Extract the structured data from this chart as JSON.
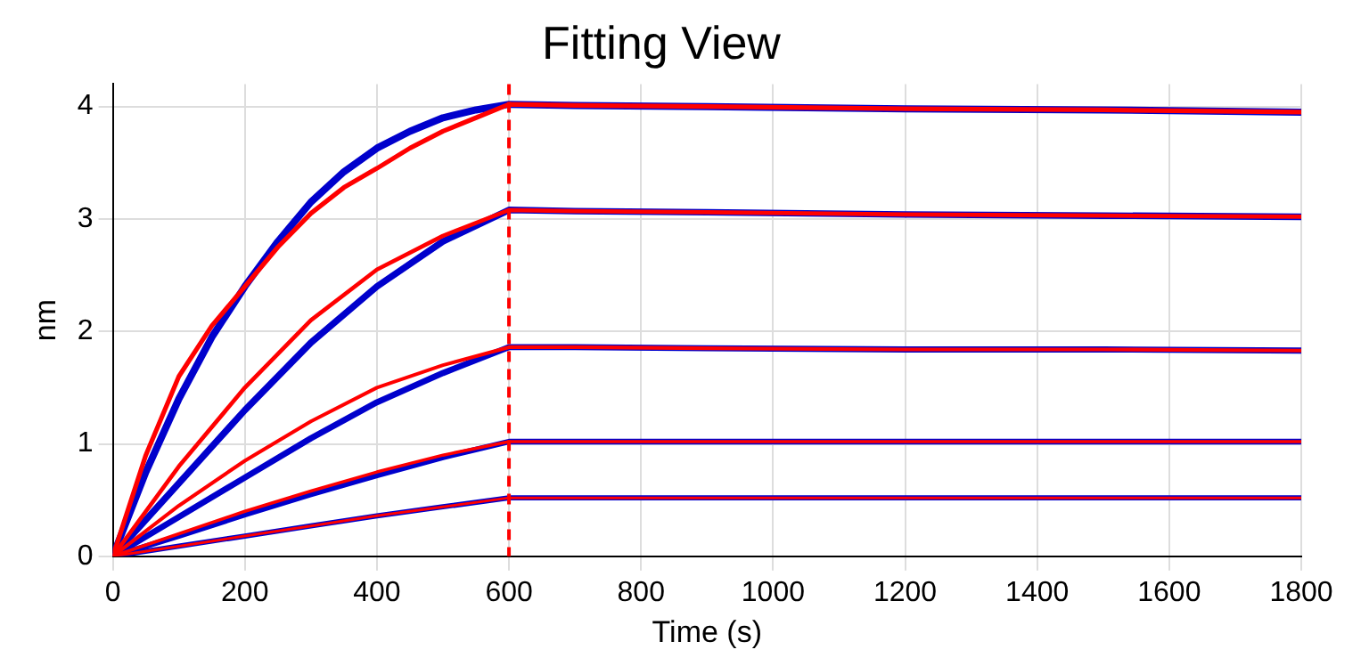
{
  "chart_data": {
    "type": "line",
    "title": "Fitting View",
    "xlabel": "Time (s)",
    "ylabel": "nm",
    "xlim": [
      0,
      1800
    ],
    "xticks": [
      0,
      200,
      400,
      600,
      800,
      1000,
      1200,
      1400,
      1600,
      1800
    ],
    "ylim": [
      0,
      4.2
    ],
    "yticks": [
      0,
      1,
      2,
      3,
      4
    ],
    "grid": true,
    "legend": false,
    "marker": "none",
    "line_style": "solid",
    "series": [
      {
        "color": "#0000cc",
        "x": [
          0,
          50,
          100,
          150,
          200,
          250,
          300,
          350,
          400,
          450,
          500,
          550,
          600,
          700,
          900,
          1200,
          1500,
          1800
        ],
        "values": [
          0,
          0.75,
          1.4,
          1.95,
          2.4,
          2.8,
          3.15,
          3.42,
          3.63,
          3.78,
          3.9,
          3.97,
          4.02,
          4.01,
          4.0,
          3.98,
          3.97,
          3.95
        ]
      },
      {
        "color": "#0000cc",
        "x": [
          0,
          100,
          200,
          300,
          400,
          500,
          600,
          700,
          900,
          1200,
          1500,
          1800
        ],
        "values": [
          0,
          0.65,
          1.3,
          1.9,
          2.4,
          2.8,
          3.08,
          3.07,
          3.06,
          3.04,
          3.03,
          3.02
        ]
      },
      {
        "color": "#0000cc",
        "x": [
          0,
          100,
          200,
          300,
          400,
          500,
          600,
          700,
          900,
          1200,
          1500,
          1800
        ],
        "values": [
          0,
          0.35,
          0.7,
          1.05,
          1.37,
          1.63,
          1.86,
          1.86,
          1.85,
          1.84,
          1.84,
          1.83
        ]
      },
      {
        "color": "#0000cc",
        "x": [
          0,
          100,
          200,
          300,
          400,
          500,
          600,
          700,
          900,
          1200,
          1500,
          1800
        ],
        "values": [
          0,
          0.18,
          0.37,
          0.55,
          0.72,
          0.88,
          1.02,
          1.02,
          1.02,
          1.02,
          1.02,
          1.02
        ]
      },
      {
        "color": "#0000cc",
        "x": [
          0,
          100,
          200,
          300,
          400,
          500,
          600,
          700,
          900,
          1200,
          1500,
          1800
        ],
        "values": [
          0,
          0.09,
          0.18,
          0.27,
          0.36,
          0.44,
          0.52,
          0.52,
          0.52,
          0.52,
          0.52,
          0.52
        ]
      },
      {
        "color": "#ff0000",
        "x": [
          0,
          50,
          100,
          150,
          200,
          250,
          300,
          350,
          400,
          450,
          500,
          550,
          600,
          700,
          900,
          1200,
          1500,
          1800
        ],
        "values": [
          0,
          0.9,
          1.6,
          2.05,
          2.4,
          2.75,
          3.05,
          3.28,
          3.45,
          3.63,
          3.78,
          3.9,
          4.02,
          4.01,
          4.0,
          3.98,
          3.97,
          3.95
        ]
      },
      {
        "color": "#ff0000",
        "x": [
          0,
          100,
          200,
          300,
          400,
          500,
          600,
          700,
          900,
          1200,
          1500,
          1800
        ],
        "values": [
          0,
          0.8,
          1.5,
          2.1,
          2.55,
          2.85,
          3.08,
          3.07,
          3.06,
          3.04,
          3.03,
          3.02
        ]
      },
      {
        "color": "#ff0000",
        "x": [
          0,
          100,
          200,
          300,
          400,
          500,
          600,
          700,
          900,
          1200,
          1500,
          1800
        ],
        "values": [
          0,
          0.45,
          0.85,
          1.2,
          1.5,
          1.7,
          1.86,
          1.86,
          1.85,
          1.84,
          1.84,
          1.83
        ]
      },
      {
        "color": "#ff0000",
        "x": [
          0,
          100,
          200,
          300,
          400,
          500,
          600,
          700,
          900,
          1200,
          1500,
          1800
        ],
        "values": [
          0,
          0.2,
          0.4,
          0.58,
          0.75,
          0.9,
          1.02,
          1.02,
          1.02,
          1.02,
          1.02,
          1.02
        ]
      },
      {
        "color": "#ff0000",
        "x": [
          0,
          100,
          200,
          300,
          400,
          500,
          600,
          700,
          900,
          1200,
          1500,
          1800
        ],
        "values": [
          0,
          0.09,
          0.18,
          0.27,
          0.36,
          0.44,
          0.52,
          0.52,
          0.52,
          0.52,
          0.52,
          0.52
        ]
      }
    ],
    "ref_lines": [
      {
        "axis": "x",
        "value": 600,
        "color": "#ff0000",
        "line_style": "dashed"
      }
    ]
  }
}
